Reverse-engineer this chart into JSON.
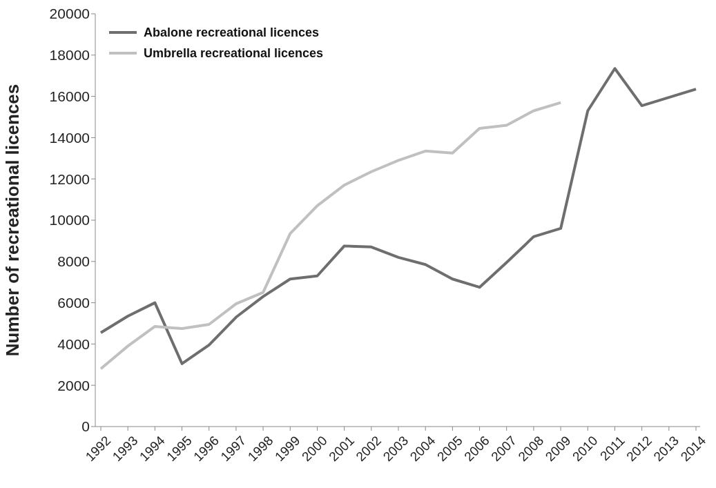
{
  "chart_data": {
    "type": "line",
    "ylabel": "Number of recreational licences",
    "categories": [
      "1992",
      "1993",
      "1994",
      "1995",
      "1996",
      "1997",
      "1998",
      "1999",
      "2000",
      "2001",
      "2002",
      "2003",
      "2004",
      "2005",
      "2006",
      "2007",
      "2008",
      "2009",
      "2010",
      "2011",
      "2012",
      "2013",
      "2014"
    ],
    "series": [
      {
        "name": "Abalone recreational licences",
        "color": "#6e6e6e",
        "values": [
          4550,
          5350,
          6000,
          3050,
          3950,
          5300,
          6300,
          7150,
          7300,
          8750,
          8700,
          8200,
          7850,
          7150,
          6750,
          7950,
          9200,
          9600,
          15300,
          17350,
          15550,
          15950,
          16350
        ]
      },
      {
        "name": "Umbrella recreational licences",
        "color": "#c0c0c0",
        "values": [
          2800,
          3900,
          4850,
          4750,
          4950,
          5950,
          6500,
          9350,
          10700,
          11700,
          12350,
          12900,
          13350,
          13250,
          14450,
          14600,
          15300,
          15700,
          null,
          null,
          null,
          null,
          null
        ]
      }
    ],
    "ylim": [
      0,
      20000
    ],
    "yticks": [
      0,
      2000,
      4000,
      6000,
      8000,
      10000,
      12000,
      14000,
      16000,
      18000,
      20000
    ],
    "grid": false,
    "legend": "top left",
    "marker": "none",
    "line_style": "solid"
  }
}
